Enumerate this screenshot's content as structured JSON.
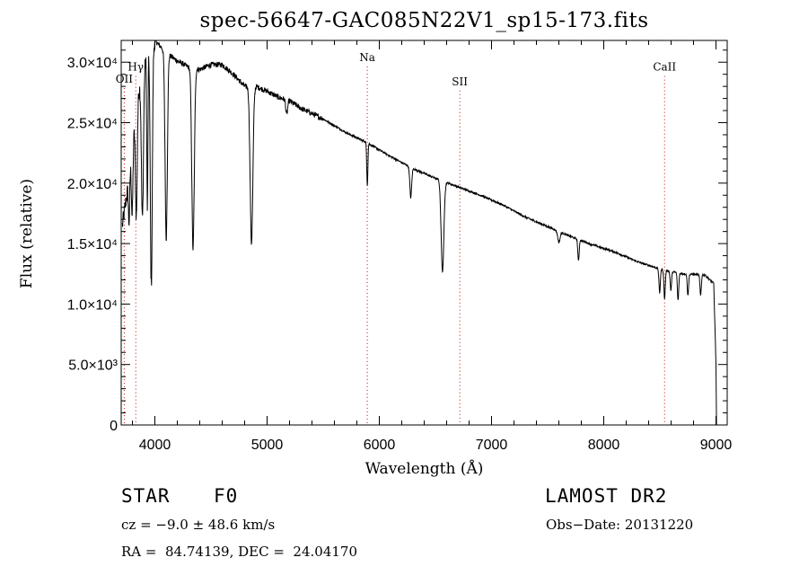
{
  "chart_data": {
    "type": "line",
    "title": "spec-56647-GAC085N22V1_sp15-173.fits",
    "xlabel": "Wavelength (Å)",
    "ylabel": "Flux (relative)",
    "xlim": [
      3700,
      9100
    ],
    "ylim": [
      0,
      31800
    ],
    "x_ticks": [
      4000,
      5000,
      6000,
      7000,
      8000,
      9000
    ],
    "y_ticks": [
      {
        "value": 0,
        "label": "0"
      },
      {
        "value": 5000,
        "label": "5.0×10³"
      },
      {
        "value": 10000,
        "label": "1.0×10⁴"
      },
      {
        "value": 15000,
        "label": "1.5×10⁴"
      },
      {
        "value": 20000,
        "label": "2.0×10⁴"
      },
      {
        "value": 25000,
        "label": "2.5×10⁴"
      },
      {
        "value": 30000,
        "label": "3.0×10⁴"
      }
    ],
    "continuum": [
      [
        3710,
        16500
      ],
      [
        3750,
        19000
      ],
      [
        3800,
        23500
      ],
      [
        3850,
        27500
      ],
      [
        3900,
        29500
      ],
      [
        3950,
        31500
      ],
      [
        4000,
        31800
      ],
      [
        4100,
        30800
      ],
      [
        4200,
        30100
      ],
      [
        4300,
        29600
      ],
      [
        4400,
        29400
      ],
      [
        4500,
        29800
      ],
      [
        4600,
        29800
      ],
      [
        4700,
        29000
      ],
      [
        4800,
        28000
      ],
      [
        4900,
        28000
      ],
      [
        5000,
        27600
      ],
      [
        5100,
        27100
      ],
      [
        5200,
        26800
      ],
      [
        5300,
        26200
      ],
      [
        5500,
        25300
      ],
      [
        5700,
        24200
      ],
      [
        5900,
        23300
      ],
      [
        6100,
        22200
      ],
      [
        6300,
        21200
      ],
      [
        6500,
        20400
      ],
      [
        6700,
        19700
      ],
      [
        6900,
        19000
      ],
      [
        7100,
        18200
      ],
      [
        7300,
        17200
      ],
      [
        7500,
        16400
      ],
      [
        7700,
        15600
      ],
      [
        7900,
        14900
      ],
      [
        8100,
        14300
      ],
      [
        8300,
        13500
      ],
      [
        8500,
        12900
      ],
      [
        8700,
        12500
      ],
      [
        8900,
        12400
      ],
      [
        8980,
        11700
      ],
      [
        9000,
        5000
      ],
      [
        9005,
        0
      ]
    ],
    "absorption_lines": [
      {
        "center": 3770,
        "depth": 4000,
        "width": 6
      },
      {
        "center": 3798,
        "depth": 6000,
        "width": 7
      },
      {
        "center": 3835,
        "depth": 9000,
        "width": 8
      },
      {
        "center": 3889,
        "depth": 12000,
        "width": 9
      },
      {
        "center": 3933,
        "depth": 13000,
        "width": 5
      },
      {
        "center": 3968,
        "depth": 20000,
        "width": 9
      },
      {
        "center": 4101,
        "depth": 15500,
        "width": 10
      },
      {
        "center": 4340,
        "depth": 15000,
        "width": 11
      },
      {
        "center": 4861,
        "depth": 13000,
        "width": 12
      },
      {
        "center": 5175,
        "depth": 1200,
        "width": 8
      },
      {
        "center": 5893,
        "depth": 3500,
        "width": 5
      },
      {
        "center": 6280,
        "depth": 2500,
        "width": 8
      },
      {
        "center": 6563,
        "depth": 7500,
        "width": 12
      },
      {
        "center": 7600,
        "depth": 900,
        "width": 10
      },
      {
        "center": 7775,
        "depth": 1800,
        "width": 6
      },
      {
        "center": 8498,
        "depth": 2000,
        "width": 6
      },
      {
        "center": 8542,
        "depth": 2400,
        "width": 6
      },
      {
        "center": 8598,
        "depth": 1600,
        "width": 6
      },
      {
        "center": 8662,
        "depth": 2300,
        "width": 6
      },
      {
        "center": 8750,
        "depth": 1700,
        "width": 6
      },
      {
        "center": 8863,
        "depth": 1700,
        "width": 6
      }
    ],
    "line_markers": [
      {
        "label": "OII",
        "x": 3727,
        "label_y": 28300,
        "color": "#cc0000"
      },
      {
        "label": "Hγ",
        "x": 3830,
        "label_y": 29300,
        "color": "#cc0000"
      },
      {
        "label": "Na",
        "x": 5893,
        "label_y": 30100,
        "color": "#cc0000"
      },
      {
        "label": "SII",
        "x": 6717,
        "label_y": 28100,
        "color": "#cc0000"
      },
      {
        "label": "CaII",
        "x": 8542,
        "label_y": 29300,
        "color": "#cc0000"
      }
    ],
    "grid": false,
    "line_color": "#000000"
  },
  "info": {
    "object_type": "STAR",
    "spectral_class": "F0",
    "survey": "LAMOST DR2",
    "cz": "cz = −9.0 ± 48.6 km/s",
    "obs_date": "Obs−Date: 20131220",
    "coords": "RA =  84.74139, DEC =  24.04170"
  }
}
